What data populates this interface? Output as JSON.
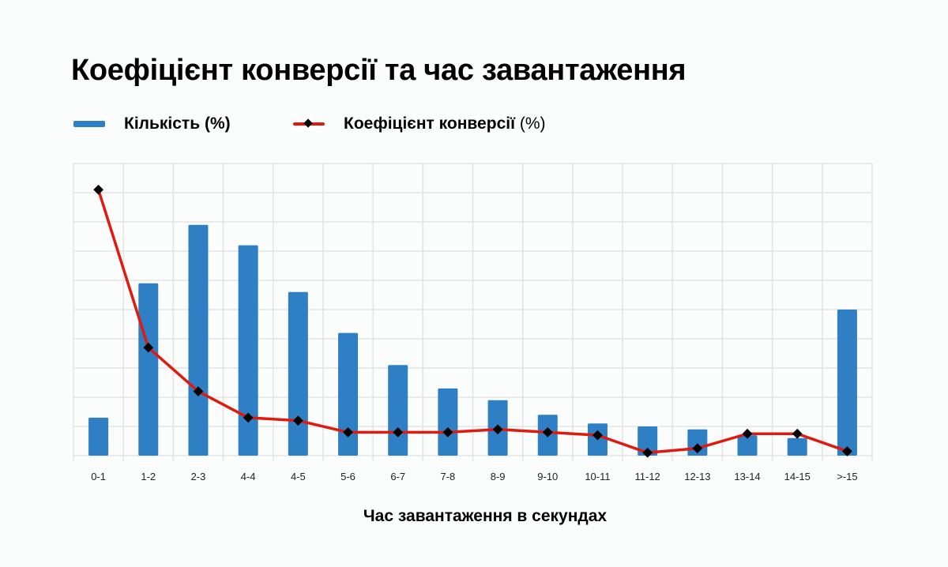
{
  "title": "Коефіцієнт конверсії та час завантаження",
  "legend": {
    "bar_label": "Кількість (%)",
    "line_label": "Коефіцієнт конверсії",
    "line_label_unit": "(%)"
  },
  "colors": {
    "bar": "#2e7fc4",
    "line": "#e01a0f",
    "marker": "#000000",
    "grid": "#e3e3e3",
    "background": "#fbfcfc"
  },
  "chart_data": {
    "type": "bar",
    "title": "Коефіцієнт конверсії та час завантаження",
    "xlabel": "Час завантаження в секундах",
    "ylabel": "",
    "categories": [
      "0-1",
      "1-2",
      "2-3",
      "4-4",
      "4-5",
      "5-6",
      "6-7",
      "7-8",
      "8-9",
      "9-10",
      "10-11",
      "11-12",
      "12-13",
      "13-14",
      "14-15",
      ">-15"
    ],
    "series": [
      {
        "name": "Кількість (%)",
        "type": "bar",
        "values": [
          1.3,
          5.9,
          7.9,
          7.2,
          5.6,
          4.2,
          3.1,
          2.3,
          1.9,
          1.4,
          1.1,
          1.0,
          0.9,
          0.7,
          0.6,
          5.0
        ]
      },
      {
        "name": "Коефіцієнт конверсії (%)",
        "type": "line",
        "marker": "diamond",
        "values": [
          9.1,
          3.7,
          2.2,
          1.3,
          1.2,
          0.8,
          0.8,
          0.8,
          0.9,
          0.8,
          0.7,
          0.1,
          0.25,
          0.75,
          0.75,
          0.15
        ]
      }
    ],
    "ylim": [
      0,
      10
    ],
    "y_tick_labels_visible": false,
    "grid": true,
    "legend_position": "top-left"
  }
}
